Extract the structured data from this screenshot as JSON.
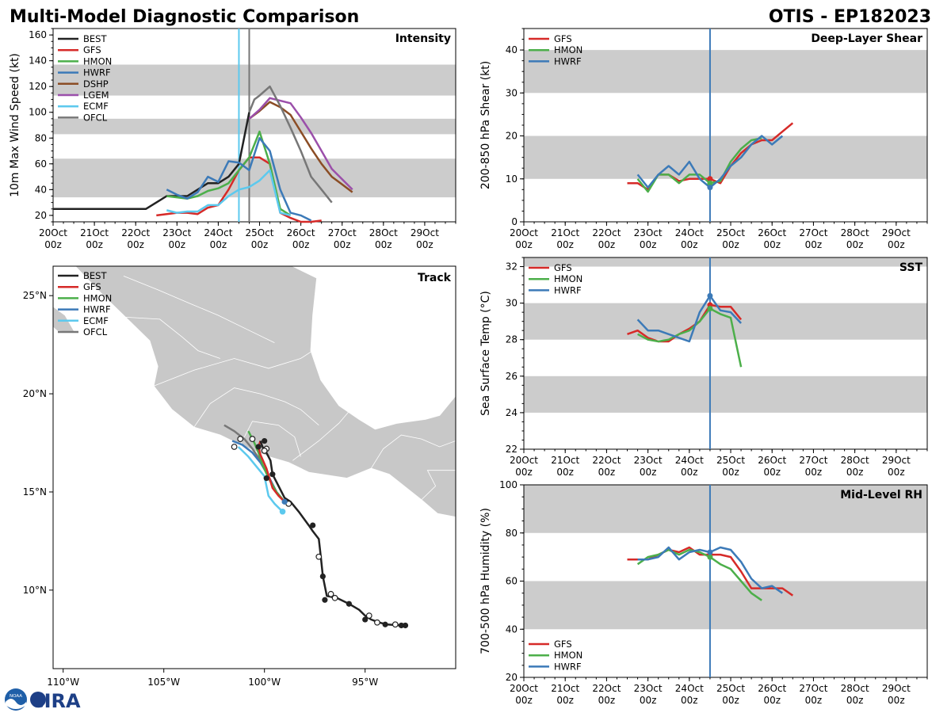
{
  "header": {
    "title": "Multi-Model Diagnostic Comparison",
    "storm": "OTIS - EP182023"
  },
  "colors": {
    "BEST": "#222222",
    "GFS": "#d62a28",
    "HMON": "#4caf4a",
    "HWRF": "#3c7ab8",
    "DSHP": "#8b4d25",
    "LGEM": "#9b4faa",
    "ECMF": "#5cc9ee",
    "OFCL": "#777777",
    "band": "#cccccc",
    "land": "#c8c8c8",
    "vline": "#3c7ab8"
  },
  "time_ticks": [
    "20Oct\n00z",
    "21Oct\n00z",
    "22Oct\n00z",
    "23Oct\n00z",
    "24Oct\n00z",
    "25Oct\n00z",
    "26Oct\n00z",
    "27Oct\n00z",
    "28Oct\n00z",
    "29Oct\n00z"
  ],
  "logo": {
    "badge": "NOAA",
    "text": "CIRA"
  },
  "chart_data": [
    {
      "id": "intensity",
      "type": "line",
      "title": "Intensity",
      "ylabel": "10m Max Wind Speed (kt)",
      "xlim": [
        0,
        9.75
      ],
      "ylim": [
        15,
        165
      ],
      "yticks": [
        20,
        40,
        60,
        80,
        100,
        120,
        140,
        160
      ],
      "bands": [
        [
          34,
          64
        ],
        [
          83,
          95
        ],
        [
          113,
          137
        ]
      ],
      "vlines": [
        {
          "x": 4.5,
          "color": "#5cc9ee"
        },
        {
          "x": 4.75,
          "color": "#777777"
        }
      ],
      "legend": [
        "BEST",
        "GFS",
        "HMON",
        "HWRF",
        "DSHP",
        "LGEM",
        "ECMF",
        "OFCL"
      ],
      "series": [
        {
          "name": "BEST",
          "x": [
            0,
            0.5,
            1,
            1.5,
            2,
            2.25,
            2.75,
            3.25,
            3.75,
            4,
            4.25,
            4.5,
            4.75
          ],
          "y": [
            25,
            25,
            25,
            25,
            25,
            25,
            35,
            35,
            45,
            45,
            50,
            60,
            100
          ]
        },
        {
          "name": "GFS",
          "x": [
            2.5,
            2.75,
            3,
            3.25,
            3.5,
            3.75,
            4,
            4.25,
            4.5,
            4.75,
            5,
            5.25,
            5.5,
            5.75,
            6,
            6.25,
            6.5
          ],
          "y": [
            20,
            21,
            22,
            22,
            21,
            26,
            28,
            40,
            55,
            65,
            65,
            60,
            22,
            18,
            15,
            15,
            16
          ]
        },
        {
          "name": "HMON",
          "x": [
            2.75,
            3,
            3.25,
            3.5,
            3.75,
            4,
            4.25,
            4.5,
            4.75,
            5,
            5.25,
            5.5,
            5.75
          ],
          "y": [
            35,
            34,
            33,
            35,
            39,
            41,
            45,
            55,
            65,
            85,
            60,
            25,
            20
          ]
        },
        {
          "name": "HWRF",
          "x": [
            2.75,
            3,
            3.25,
            3.5,
            3.75,
            4,
            4.25,
            4.5,
            4.75,
            5,
            5.25,
            5.5,
            5.75,
            6,
            6.25
          ],
          "y": [
            40,
            36,
            33,
            38,
            50,
            46,
            62,
            61,
            55,
            80,
            70,
            40,
            22,
            20,
            16
          ]
        },
        {
          "name": "DSHP",
          "x": [
            4.75,
            5,
            5.25,
            5.5,
            5.75,
            6,
            6.25,
            6.5,
            6.75,
            7,
            7.25
          ],
          "y": [
            95,
            101,
            108,
            104,
            98,
            85,
            72,
            60,
            50,
            44,
            38
          ]
        },
        {
          "name": "LGEM",
          "x": [
            4.75,
            5,
            5.25,
            5.5,
            5.75,
            6,
            6.25,
            6.5,
            6.75,
            7,
            7.25
          ],
          "y": [
            95,
            102,
            111,
            109,
            107,
            96,
            84,
            70,
            56,
            48,
            40
          ]
        },
        {
          "name": "ECMF",
          "x": [
            2.75,
            3,
            3.25,
            3.5,
            3.75,
            4,
            4.25,
            4.5,
            4.75,
            5,
            5.25,
            5.5,
            5.75
          ],
          "y": [
            24,
            22,
            23,
            23,
            28,
            28,
            35,
            40,
            42,
            47,
            55,
            22,
            20
          ]
        },
        {
          "name": "OFCL",
          "x": [
            4.75,
            4.875,
            5,
            5.25,
            5.5,
            5.75,
            6,
            6.25,
            6.5,
            6.75
          ],
          "y": [
            100,
            110,
            113,
            120,
            105,
            88,
            70,
            50,
            40,
            30
          ]
        }
      ]
    },
    {
      "id": "shear",
      "type": "line",
      "title": "Deep-Layer Shear",
      "ylabel": "200-850 hPa Shear (kt)",
      "xlim": [
        0,
        9.75
      ],
      "ylim": [
        0,
        45
      ],
      "yticks": [
        0,
        10,
        20,
        30,
        40
      ],
      "bands": [
        [
          10,
          20
        ],
        [
          30,
          40
        ]
      ],
      "vlines": [
        {
          "x": 4.5,
          "color": "#3c7ab8"
        }
      ],
      "legend": [
        "GFS",
        "HMON",
        "HWRF"
      ],
      "series": [
        {
          "name": "GFS",
          "x": [
            2.5,
            2.75,
            3,
            3.25,
            3.5,
            3.75,
            4,
            4.25,
            4.5,
            4.75,
            5,
            5.25,
            5.5,
            5.75,
            6,
            6.25,
            6.5
          ],
          "y": [
            9,
            9,
            7.5,
            11,
            11,
            9.5,
            10,
            10,
            10,
            9,
            13,
            16,
            18,
            19,
            19,
            21,
            23
          ]
        },
        {
          "name": "HMON",
          "x": [
            2.75,
            3,
            3.25,
            3.5,
            3.75,
            4,
            4.25,
            4.5,
            4.75,
            5,
            5.25,
            5.5,
            5.75
          ],
          "y": [
            10,
            7,
            11,
            11,
            9,
            11,
            11,
            9,
            9.5,
            14,
            17,
            19,
            19.5
          ]
        },
        {
          "name": "HWRF",
          "x": [
            2.75,
            3,
            3.25,
            3.5,
            3.75,
            4,
            4.25,
            4.5,
            4.75,
            5,
            5.25,
            5.5,
            5.75,
            6,
            6.25
          ],
          "y": [
            11,
            8,
            11,
            13,
            11,
            14,
            10,
            8,
            10,
            13,
            15,
            18,
            20,
            18,
            20
          ]
        }
      ]
    },
    {
      "id": "sst",
      "type": "line",
      "title": "SST",
      "ylabel": "Sea Surface Temp (°C)",
      "xlim": [
        0,
        9.75
      ],
      "ylim": [
        22,
        32.5
      ],
      "yticks": [
        22,
        24,
        26,
        28,
        30,
        32
      ],
      "bands": [
        [
          24,
          26
        ],
        [
          28,
          30
        ],
        [
          32,
          32.5
        ]
      ],
      "vlines": [
        {
          "x": 4.5,
          "color": "#3c7ab8"
        }
      ],
      "legend": [
        "GFS",
        "HMON",
        "HWRF"
      ],
      "series": [
        {
          "name": "GFS",
          "x": [
            2.5,
            2.75,
            3,
            3.25,
            3.5,
            3.75,
            4,
            4.25,
            4.5,
            4.75,
            5,
            5.25
          ],
          "y": [
            28.3,
            28.5,
            28.1,
            27.9,
            27.9,
            28.3,
            28.6,
            29.0,
            29.9,
            29.8,
            29.8,
            29.1
          ]
        },
        {
          "name": "HMON",
          "x": [
            2.75,
            3,
            3.25,
            3.5,
            3.75,
            4,
            4.25,
            4.5,
            4.75,
            5,
            5.25
          ],
          "y": [
            28.3,
            28.0,
            27.9,
            28.0,
            28.3,
            28.5,
            29.0,
            29.7,
            29.4,
            29.2,
            26.5
          ]
        },
        {
          "name": "HWRF",
          "x": [
            2.75,
            3,
            3.25,
            3.5,
            3.75,
            4,
            4.25,
            4.5,
            4.75,
            5,
            5.25
          ],
          "y": [
            29.1,
            28.5,
            28.5,
            28.3,
            28.1,
            27.9,
            29.5,
            30.4,
            29.6,
            29.5,
            28.9
          ]
        }
      ]
    },
    {
      "id": "rh",
      "type": "line",
      "title": "Mid-Level RH",
      "ylabel": "700-500 hPa Humidity (%)",
      "xlim": [
        0,
        9.75
      ],
      "ylim": [
        20,
        100
      ],
      "yticks": [
        20,
        40,
        60,
        80,
        100
      ],
      "bands": [
        [
          40,
          60
        ],
        [
          80,
          100
        ]
      ],
      "vlines": [
        {
          "x": 4.5,
          "color": "#3c7ab8"
        }
      ],
      "legend": [
        "GFS",
        "HMON",
        "HWRF"
      ],
      "series": [
        {
          "name": "GFS",
          "x": [
            2.5,
            2.75,
            3,
            3.25,
            3.5,
            3.75,
            4,
            4.25,
            4.5,
            4.75,
            5,
            5.25,
            5.5,
            5.75,
            6,
            6.25,
            6.5
          ],
          "y": [
            69,
            69,
            69,
            71,
            73,
            72,
            74,
            71,
            71,
            71,
            70,
            64,
            57,
            57,
            57,
            57,
            54
          ]
        },
        {
          "name": "HMON",
          "x": [
            2.75,
            3,
            3.25,
            3.5,
            3.75,
            4,
            4.25,
            4.5,
            4.75,
            5,
            5.25,
            5.5,
            5.75
          ],
          "y": [
            67,
            70,
            71,
            73,
            71,
            73,
            72,
            70,
            67,
            65,
            60,
            55,
            52
          ]
        },
        {
          "name": "HWRF",
          "x": [
            2.75,
            3,
            3.25,
            3.5,
            3.75,
            4,
            4.25,
            4.5,
            4.75,
            5,
            5.25,
            5.5,
            5.75,
            6,
            6.25
          ],
          "y": [
            69,
            69,
            70,
            74,
            69,
            72,
            73,
            72,
            74,
            73,
            68,
            61,
            57,
            58,
            55
          ]
        }
      ]
    },
    {
      "id": "track",
      "type": "scatter",
      "title": "Track",
      "xlabels": [
        "110°W",
        "105°W",
        "100°W",
        "95°W"
      ],
      "ylabels": [
        "10°N",
        "15°N",
        "20°N",
        "25°N"
      ],
      "xlim": [
        -110.5,
        -90.5
      ],
      "ylim": [
        6,
        26.5
      ],
      "legend": [
        "BEST",
        "GFS",
        "HMON",
        "HWRF",
        "ECMF",
        "OFCL"
      ],
      "series": [
        {
          "name": "BEST",
          "lon": [
            -93.0,
            -93.2,
            -93.9,
            -94.3,
            -94.7,
            -95.0,
            -95.3,
            -95.8,
            -96.4,
            -96.9,
            -97.1,
            -97.2,
            -97.3,
            -97.6,
            -97.8,
            -98.3,
            -98.7,
            -99.0,
            -99.3,
            -99.6,
            -99.7,
            -99.9,
            -100.1,
            -100.2
          ],
          "lat": [
            8.2,
            8.2,
            8.25,
            8.35,
            8.5,
            8.7,
            9.0,
            9.3,
            9.6,
            9.7,
            10.7,
            11.7,
            12.6,
            13.0,
            13.3,
            14.0,
            14.5,
            14.7,
            15.3,
            15.9,
            16.6,
            17.0,
            17.3,
            17.6
          ]
        },
        {
          "name": "GFS",
          "lon": [
            -100.2,
            -100.3,
            -100.2,
            -99.9,
            -99.6,
            -99.3,
            -99.0
          ],
          "lat": [
            17.6,
            17.3,
            16.9,
            16.2,
            15.2,
            14.8,
            14.5
          ]
        },
        {
          "name": "HMON",
          "lon": [
            -100.8,
            -100.5,
            -100.3,
            -100.1,
            -99.8,
            -99.4,
            -99.0
          ],
          "lat": [
            18.1,
            17.5,
            17.0,
            16.4,
            15.7,
            15.0,
            14.5
          ]
        },
        {
          "name": "HWRF",
          "lon": [
            -101.6,
            -101.1,
            -100.6,
            -100.2,
            -99.8,
            -99.4,
            -99.0
          ],
          "lat": [
            17.6,
            17.4,
            17.0,
            16.5,
            15.8,
            15.0,
            14.5
          ]
        },
        {
          "name": "ECMF",
          "lon": [
            -99.1,
            -99.5,
            -99.8,
            -100.0,
            -100.4,
            -100.8,
            -101.3
          ],
          "lat": [
            14.0,
            14.4,
            14.8,
            15.8,
            16.3,
            16.8,
            17.3
          ]
        },
        {
          "name": "OFCL",
          "lon": [
            -99.0,
            -99.4,
            -99.8,
            -100.2,
            -100.6,
            -101.0,
            -101.5,
            -102.0
          ],
          "lat": [
            14.5,
            15.0,
            15.8,
            16.6,
            17.2,
            17.7,
            18.1,
            18.4
          ]
        }
      ],
      "markers": {
        "filled": [
          [
            -93.0,
            8.2
          ],
          [
            -93.2,
            8.2
          ],
          [
            -94.0,
            8.25
          ],
          [
            -95.0,
            8.5
          ],
          [
            -95.8,
            9.3
          ],
          [
            -97.0,
            9.5
          ],
          [
            -97.1,
            10.7
          ],
          [
            -97.6,
            13.3
          ],
          [
            -99.6,
            15.9
          ],
          [
            -99.9,
            15.7
          ],
          [
            -100.3,
            17.3
          ],
          [
            -100.0,
            17.6
          ]
        ],
        "hollow": [
          [
            -93.5,
            8.25
          ],
          [
            -94.4,
            8.35
          ],
          [
            -94.8,
            8.7
          ],
          [
            -96.5,
            9.6
          ],
          [
            -96.7,
            9.8
          ],
          [
            -97.3,
            11.7
          ],
          [
            -99.9,
            17.2
          ],
          [
            -100.6,
            17.7
          ],
          [
            -101.2,
            17.7
          ],
          [
            -101.5,
            17.3
          ],
          [
            -100.0,
            17.1
          ],
          [
            -98.8,
            14.4
          ]
        ],
        "forecast_end": [
          [
            -99.1,
            14.0
          ],
          [
            -99.0,
            14.5
          ],
          [
            -98.9,
            14.5
          ]
        ]
      }
    }
  ]
}
